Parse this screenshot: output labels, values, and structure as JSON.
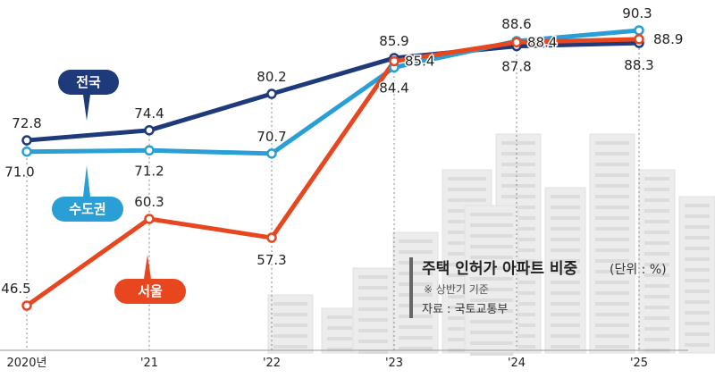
{
  "chart_data": {
    "type": "line",
    "title": "주택 인허가 아파트 비중",
    "unit": "(단위 : %)",
    "note": "※ 상반기 기준",
    "source": "자료 : 국토교통부",
    "categories": [
      "2020년",
      "'21",
      "'22",
      "'23",
      "'24",
      "'25"
    ],
    "series": [
      {
        "name": "전국",
        "color": "#1f3a7a",
        "values": [
          72.8,
          74.4,
          80.2,
          85.9,
          87.8,
          88.3
        ]
      },
      {
        "name": "수도권",
        "color": "#2a9fd6",
        "values": [
          71.0,
          71.2,
          70.7,
          84.4,
          88.6,
          90.3
        ]
      },
      {
        "name": "서울",
        "color": "#e8461e",
        "values": [
          46.5,
          60.3,
          57.3,
          85.4,
          88.4,
          88.9
        ]
      }
    ],
    "ylim": [
      46.5,
      90.3
    ],
    "grid": false,
    "legend": "inline labels"
  }
}
